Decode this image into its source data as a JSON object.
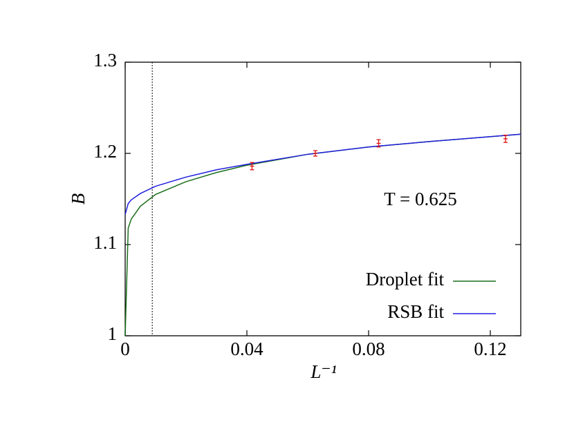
{
  "chart_data": {
    "type": "line",
    "xlabel": "L⁻¹",
    "ylabel": "B",
    "annotation": "T = 0.625",
    "xlim": [
      0,
      0.13
    ],
    "ylim": [
      1,
      1.3
    ],
    "xticks": [
      0,
      0.04,
      0.08,
      0.12
    ],
    "yticks": [
      1,
      1.1,
      1.2,
      1.3
    ],
    "legend": "lower right",
    "reference_line_x": 0.0089,
    "x": [
      0,
      0.001,
      0.002,
      0.005,
      0.01,
      0.02,
      0.03,
      0.04,
      0.06,
      0.08,
      0.1,
      0.13
    ],
    "series": [
      {
        "name": "Droplet fit",
        "color": "#1a6e1a",
        "values": [
          1.0,
          1.118,
          1.128,
          1.142,
          1.155,
          1.169,
          1.179,
          1.187,
          1.199,
          1.207,
          1.213,
          1.221
        ]
      },
      {
        "name": "RSB fit",
        "color": "#1f1fdd",
        "values": [
          1.133,
          1.145,
          1.149,
          1.156,
          1.164,
          1.174,
          1.182,
          1.188,
          1.199,
          1.207,
          1.213,
          1.221
        ]
      }
    ],
    "points": {
      "color": "#e01010",
      "x": [
        0.0417,
        0.0625,
        0.0833,
        0.125
      ],
      "values": [
        1.186,
        1.2,
        1.211,
        1.216
      ],
      "errors": [
        0.004,
        0.003,
        0.004,
        0.004
      ]
    }
  }
}
